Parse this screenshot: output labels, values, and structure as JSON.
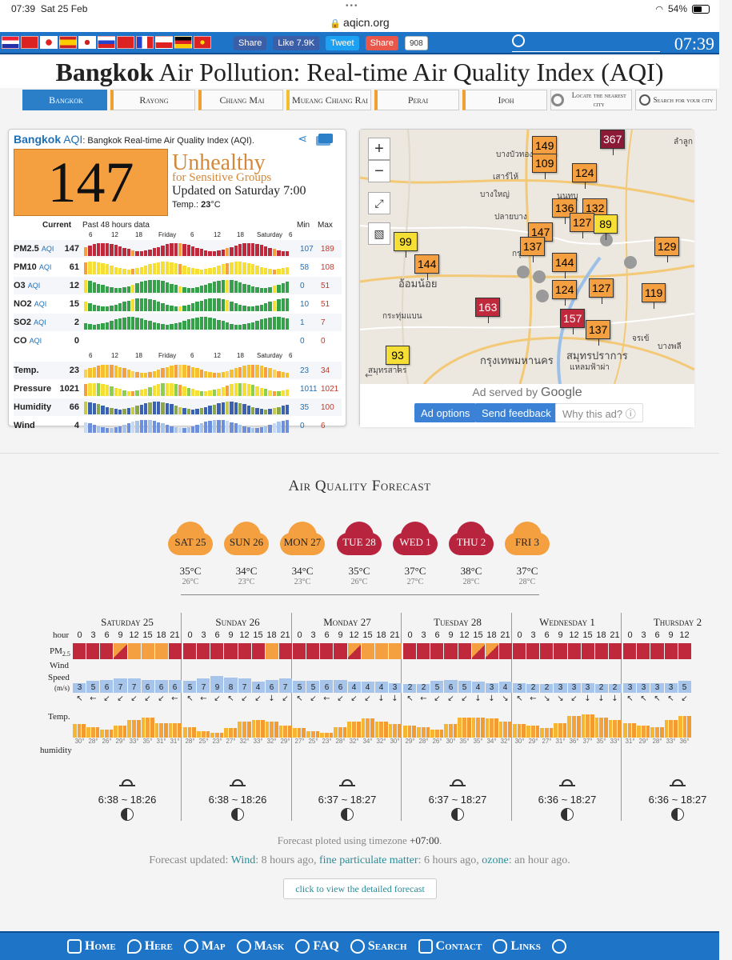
{
  "statusbar": {
    "time": "07:39",
    "date": "Sat 25 Feb",
    "url": "aqicn.org",
    "battery": "54%"
  },
  "topbar": {
    "share_fb": "Share",
    "like": "Like 7.9K",
    "tweet": "Tweet",
    "share_plus": "Share",
    "share_count": "908",
    "clock": "07:39"
  },
  "title": {
    "city": "Bangkok",
    "rest": " Air Pollution: Real-time Air Quality Index (AQI)"
  },
  "citynav": {
    "items": [
      "Bangkok",
      "Rayong",
      "Chiang Mai",
      "Mueang Chiang Rai",
      "Perai",
      "Ipoh"
    ],
    "locate": "Locate the nearest city",
    "search": "Search for your city"
  },
  "aqi": {
    "city": "Bangkok",
    "aqi_label": "AQI",
    "subtitle": ": Bangkok Real-time Air Quality Index (AQI).",
    "value": "147",
    "level": "Unhealthy",
    "level_sub": "for Sensitive Groups",
    "updated": "Updated on Saturday 7:00",
    "temp_label": "Temp.:",
    "temp_value": "23",
    "temp_unit": "°C",
    "hist_current": "Current",
    "hist_past": "Past 48 hours data",
    "hist_min": "Min",
    "hist_max": "Max",
    "ticks_top": [
      "6",
      "12",
      "18",
      "Friday",
      "6",
      "12",
      "18",
      "Saturday",
      "6"
    ],
    "ticks_temp": [
      "6",
      "12",
      "18",
      "Friday",
      "6",
      "12",
      "18",
      "Saturday",
      "6"
    ],
    "rows": [
      {
        "name": "PM2.5",
        "aqi": "AQI",
        "value": "147",
        "min": "107",
        "max": "189"
      },
      {
        "name": "PM10",
        "aqi": "AQI",
        "value": "61",
        "min": "58",
        "max": "108"
      },
      {
        "name": "O3",
        "aqi": "AQI",
        "value": "12",
        "min": "0",
        "max": "51"
      },
      {
        "name": "NO2",
        "aqi": "AQI",
        "value": "15",
        "min": "10",
        "max": "51"
      },
      {
        "name": "SO2",
        "aqi": "AQI",
        "value": "2",
        "min": "1",
        "max": "7"
      },
      {
        "name": "CO",
        "aqi": "AQI",
        "value": "0",
        "min": "0",
        "max": "0"
      },
      {
        "name": "Temp.",
        "aqi": "",
        "value": "23",
        "min": "23",
        "max": "34"
      },
      {
        "name": "Pressure",
        "aqi": "",
        "value": "1021",
        "min": "1011",
        "max": "1021"
      },
      {
        "name": "Humidity",
        "aqi": "",
        "value": "66",
        "min": "35",
        "max": "100"
      },
      {
        "name": "Wind",
        "aqi": "",
        "value": "4",
        "min": "0",
        "max": "6"
      }
    ]
  },
  "map": {
    "zoom_in": "+",
    "zoom_out": "−",
    "markers": [
      "367",
      "149",
      "109",
      "124",
      "136",
      "132",
      "127",
      "147",
      "89",
      "99",
      "137",
      "144",
      "129",
      "144",
      "124",
      "127",
      "119",
      "163",
      "157",
      "137",
      "93"
    ],
    "labels": [
      "บางบัวทอง",
      "เสาร์ไห้",
      "บางใหญ่",
      "ปลายบาง",
      "ลำลูก",
      "นนทบุ",
      "กรุง",
      "อ้อมน้อย",
      "กระทุ่มแบน",
      "บางพลี",
      "กรุงเทพมหานคร",
      "สมุทรปราการ",
      "แหลมฟ้าผ่า",
      "สมุทรสาคร",
      "จรเข้"
    ],
    "ad_served": "Ad served by",
    "google": "Google",
    "ad_options": "Ad options",
    "send_feedback": "Send feedback",
    "why_ad": "Why this ad? ⓘ"
  },
  "forecast": {
    "title": "Air Quality Forecast",
    "days": [
      {
        "label": "SAT 25",
        "level": "org",
        "high": "35°C",
        "low": "26°C"
      },
      {
        "label": "SUN 26",
        "level": "org",
        "high": "34°C",
        "low": "23°C"
      },
      {
        "label": "MON 27",
        "level": "org",
        "high": "34°C",
        "low": "23°C"
      },
      {
        "label": "TUE 28",
        "level": "red",
        "high": "35°C",
        "low": "26°C"
      },
      {
        "label": "WED 1",
        "level": "red",
        "high": "37°C",
        "low": "27°C"
      },
      {
        "label": "THU 2",
        "level": "red",
        "high": "38°C",
        "low": "28°C"
      },
      {
        "label": "FRI 3",
        "level": "org",
        "high": "37°C",
        "low": "28°C"
      }
    ],
    "row_labels": {
      "hour": "hour",
      "pm": "PM",
      "pm_sub": "2.5",
      "wind": "Wind",
      "speed": "Speed",
      "unit": "(m/s)",
      "temp": "Temp.",
      "humidity": "humidity"
    },
    "hours": [
      "0",
      "3",
      "6",
      "9",
      "12",
      "15",
      "18",
      "21"
    ],
    "columns": [
      {
        "name": "Saturday 25",
        "pm": "rrrhooor",
        "ws": [
          "3",
          "5",
          "6",
          "7",
          "7",
          "6",
          "6",
          "6"
        ],
        "arrows": [
          "↖",
          "←",
          "↙",
          "↙",
          "↙",
          "↙",
          "↙",
          "←"
        ],
        "temps": [
          "30°",
          "28°",
          "26°",
          "29°",
          "33°",
          "35°",
          "31°",
          "31°"
        ],
        "sun": "6:38 ~ 18:26"
      },
      {
        "name": "Sunday 26",
        "pm": "rrrrrror",
        "ws": [
          "5",
          "7",
          "9",
          "8",
          "7",
          "4",
          "6",
          "7"
        ],
        "arrows": [
          "↖",
          "←",
          "↙",
          "↖",
          "↙",
          "↙",
          "↓",
          "↙"
        ],
        "temps": [
          "28°",
          "25°",
          "23°",
          "27°",
          "32°",
          "33°",
          "32°",
          "29°"
        ],
        "sun": "6:38 ~ 18:26"
      },
      {
        "name": "Monday 27",
        "pm": "rrrrhooo",
        "ws": [
          "5",
          "5",
          "6",
          "6",
          "4",
          "4",
          "4",
          "3"
        ],
        "arrows": [
          "↖",
          "↙",
          "←",
          "↙",
          "↙",
          "↙",
          "↓",
          "↓"
        ],
        "temps": [
          "27°",
          "25°",
          "23°",
          "28°",
          "32°",
          "34°",
          "32°",
          "30°"
        ],
        "sun": "6:37 ~ 18:27"
      },
      {
        "name": "Tuesday 28",
        "pm": "rrrrrhhr",
        "ws": [
          "2",
          "2",
          "5",
          "6",
          "5",
          "4",
          "3",
          "4"
        ],
        "arrows": [
          "↖",
          "←",
          "↙",
          "↙",
          "↙",
          "↓",
          "↓",
          "↘"
        ],
        "temps": [
          "29°",
          "28°",
          "26°",
          "30°",
          "35°",
          "35°",
          "34°",
          "32°"
        ],
        "sun": "6:37 ~ 18:27"
      },
      {
        "name": "Wednesday 1",
        "pm": "rrrrrrrr",
        "ws": [
          "3",
          "2",
          "2",
          "3",
          "3",
          "3",
          "2",
          "2"
        ],
        "arrows": [
          "↖",
          "←",
          "↘",
          "↘",
          "↙",
          "↓",
          "↓",
          "↓"
        ],
        "temps": [
          "30°",
          "29°",
          "27°",
          "31°",
          "36°",
          "37°",
          "35°",
          "33°"
        ],
        "sun": "6:36 ~ 18:27"
      },
      {
        "name": "Thursday 2",
        "pm": "rrrrr",
        "ws": [
          "3",
          "3",
          "3",
          "3",
          "5"
        ],
        "arrows": [
          "↖",
          "↖",
          "↖",
          "↖",
          "↙"
        ],
        "temps": [
          "31°",
          "29°",
          "28°",
          "33°",
          "36°"
        ],
        "sun": "6:36 ~ 18:27"
      }
    ],
    "note_prefix": "Forecast ploted using timezone ",
    "note_tz": "+07:00",
    "note_suffix": ".",
    "upd_prefix": "Forecast updated: ",
    "upd_wind": "Wind",
    "upd_wind_t": ": 8 hours ago, ",
    "upd_pm": "fine particulate matter",
    "upd_pm_t": ": 6 hours ago, ",
    "upd_oz": "ozone",
    "upd_oz_t": ": an hour ago.",
    "detail_button": "click to view the detailed forecast"
  },
  "bottomnav": {
    "items": [
      "Home",
      "Here",
      "Map",
      "Mask",
      "FAQ",
      "Search",
      "Contact",
      "Links"
    ]
  }
}
